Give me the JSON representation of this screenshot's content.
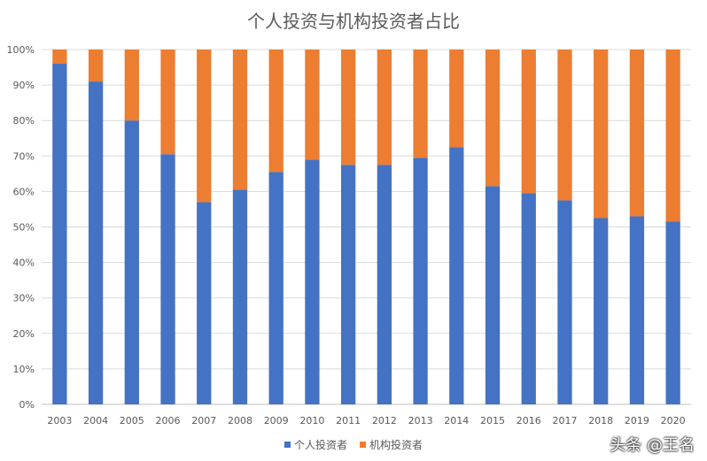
{
  "chart_data": {
    "type": "bar",
    "stacked": "percent",
    "title": "个人投资与机构投资者占比",
    "categories": [
      "2003",
      "2004",
      "2005",
      "2006",
      "2007",
      "2008",
      "2009",
      "2010",
      "2011",
      "2012",
      "2013",
      "2014",
      "2015",
      "2016",
      "2017",
      "2018",
      "2019",
      "2020"
    ],
    "series": [
      {
        "name": "个人投资者",
        "color": "#4472C4",
        "values": [
          96,
          91,
          80,
          70.5,
          57,
          60.5,
          65.5,
          69,
          67.5,
          67.5,
          69.5,
          72.5,
          61.5,
          59.5,
          57.5,
          52.5,
          53,
          51.5
        ]
      },
      {
        "name": "机构投资者",
        "color": "#ED7D31",
        "values": [
          4,
          9,
          20,
          29.5,
          43,
          39.5,
          34.5,
          31,
          32.5,
          32.5,
          30.5,
          27.5,
          38.5,
          40.5,
          42.5,
          47.5,
          47,
          48.5
        ]
      }
    ],
    "ylim": [
      0,
      100
    ],
    "yticks": [
      "0%",
      "10%",
      "20%",
      "30%",
      "40%",
      "50%",
      "60%",
      "70%",
      "80%",
      "90%",
      "100%"
    ],
    "grid": true,
    "legend": "bottom"
  },
  "watermark": "头条 @王名"
}
